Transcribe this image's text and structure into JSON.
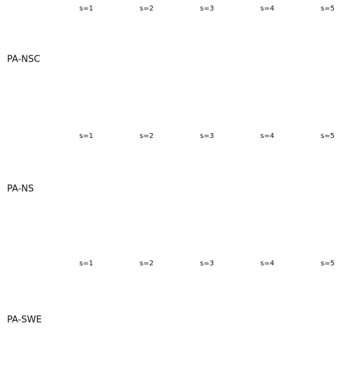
{
  "groups": [
    {
      "label": "PA-NSC",
      "columns": [
        "s=1",
        "s=2",
        "s=3",
        "s=4",
        "s=5"
      ]
    },
    {
      "label": "PA-NS",
      "columns": [
        "s=1",
        "s=2",
        "s=3",
        "s=4",
        "s=5"
      ]
    },
    {
      "label": "PA-SWE",
      "columns": [
        "s=1",
        "s=2",
        "s=3",
        "s=4",
        "s=5"
      ]
    }
  ]
}
